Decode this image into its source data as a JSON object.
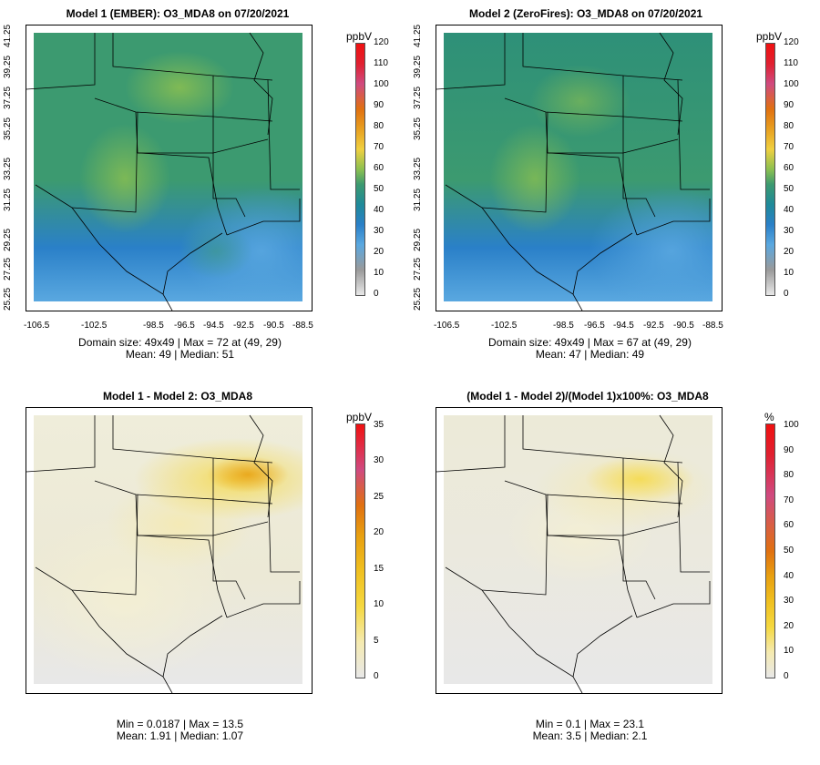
{
  "panels": [
    {
      "title": "Model 1 (EMBER): O3_MDA8 on 07/20/2021",
      "unit": "ppbV",
      "scale_labels": [
        "120",
        "110",
        "100",
        "90",
        "80",
        "70",
        "60",
        "50",
        "40",
        "30",
        "20",
        "10",
        "0"
      ],
      "y_ticks": [
        "41.25",
        "39.25",
        "37.25",
        "35.25",
        "33.25",
        "31.25",
        "29.25",
        "27.25",
        "25.25"
      ],
      "x_ticks": [
        "-106.5",
        "-102.5",
        "-98.5",
        "-96.5",
        "-94.5",
        "-92.5",
        "-90.5",
        "-88.5"
      ],
      "stats_line1": "Domain size: 49x49 | Max = 72 at (49, 29)",
      "stats_line2": "Mean: 49 |  Median: 51"
    },
    {
      "title": "Model 2 (ZeroFires): O3_MDA8 on 07/20/2021",
      "unit": "ppbV",
      "scale_labels": [
        "120",
        "110",
        "100",
        "90",
        "80",
        "70",
        "60",
        "50",
        "40",
        "30",
        "20",
        "10",
        "0"
      ],
      "y_ticks": [
        "41.25",
        "39.25",
        "37.25",
        "35.25",
        "33.25",
        "31.25",
        "29.25",
        "27.25",
        "25.25"
      ],
      "x_ticks": [
        "-106.5",
        "-102.5",
        "-98.5",
        "-96.5",
        "-94.5",
        "-92.5",
        "-90.5",
        "-88.5"
      ],
      "stats_line1": "Domain size: 49x49 | Max = 67 at (49, 29)",
      "stats_line2": "Mean: 47 |  Median: 49"
    },
    {
      "title": "Model 1 - Model 2: O3_MDA8",
      "unit": "ppbV",
      "scale_labels": [
        "35",
        "30",
        "25",
        "20",
        "15",
        "10",
        "5",
        "0"
      ],
      "stats_line1": "Min = 0.0187 | Max = 13.5",
      "stats_line2": "Mean: 1.91 |  Median: 1.07"
    },
    {
      "title": "(Model 1 - Model 2)/(Model 1)x100%: O3_MDA8",
      "unit": "%",
      "scale_labels": [
        "100",
        "90",
        "80",
        "70",
        "60",
        "50",
        "40",
        "30",
        "20",
        "10",
        "0"
      ],
      "stats_line1": "Min = 0.1 | Max = 23.1",
      "stats_line2": "Mean: 3.5 |  Median: 2.1"
    }
  ],
  "colors": {
    "abs_scale": [
      "#e8e8e8",
      "#9a9a9a",
      "#5aa8e0",
      "#2a80c8",
      "#1f8a9a",
      "#3c9a70",
      "#8cc050",
      "#f0d040",
      "#e8a020",
      "#e07010",
      "#d04a80",
      "#e02030",
      "#f01010"
    ],
    "diff_scale": [
      "#e8e8e8",
      "#f5eab0",
      "#f5d840",
      "#f0c020",
      "#e8a010",
      "#e07010",
      "#d04a80",
      "#f01010"
    ]
  }
}
